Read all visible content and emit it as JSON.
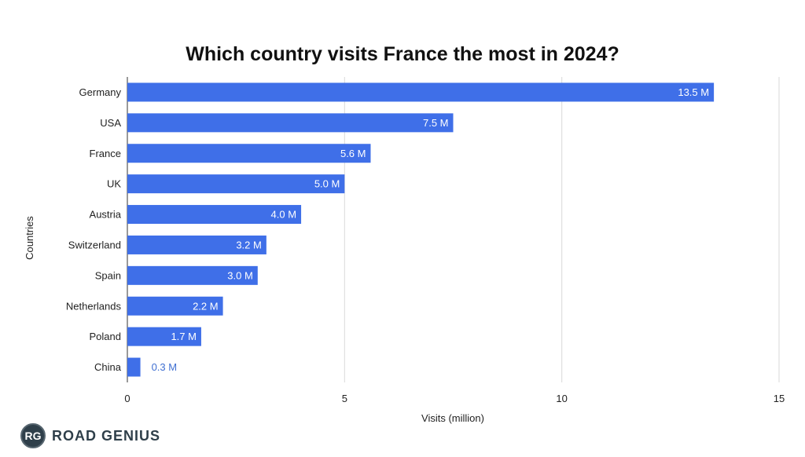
{
  "chart_data": {
    "type": "bar",
    "orientation": "horizontal",
    "title": "Which country visits France the most in 2024?",
    "xlabel": "Visits (million)",
    "ylabel": "Countries",
    "categories": [
      "Germany",
      "USA",
      "France",
      "UK",
      "Austria",
      "Switzerland",
      "Spain",
      "Netherlands",
      "Poland",
      "China"
    ],
    "values": [
      13.5,
      7.5,
      5.6,
      5.0,
      4.0,
      3.2,
      3.0,
      2.2,
      1.7,
      0.3
    ],
    "data_labels": [
      "13.5 M",
      "7.5 M",
      "5.6 M",
      "5.0 M",
      "4.0 M",
      "3.2 M",
      "3.0 M",
      "2.2 M",
      "1.7 M",
      "0.3 M"
    ],
    "xlim": [
      0,
      15
    ],
    "xticks": [
      0,
      5,
      10,
      15
    ],
    "grid": true,
    "legend": "none",
    "bar_color": "#3f6fe8"
  },
  "branding": {
    "logo_text": "RG",
    "name": "ROAD GENIUS"
  }
}
